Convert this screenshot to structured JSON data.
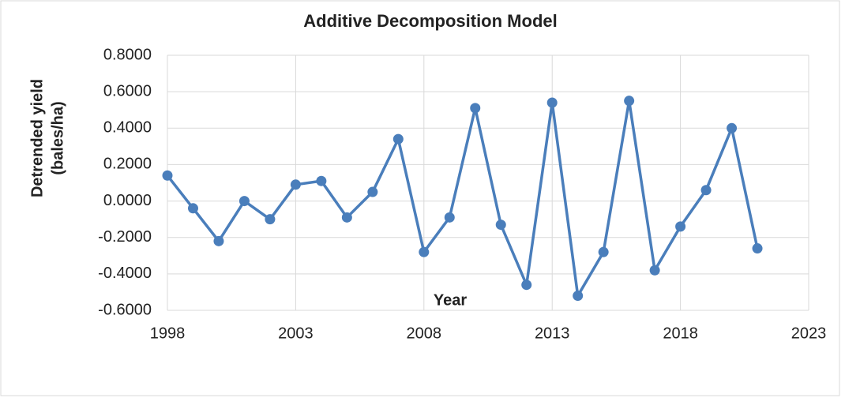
{
  "chart_data": {
    "type": "line",
    "title": "Additive Decomposition Model",
    "xlabel": "Year",
    "ylabel": [
      "Detrended yield",
      "(bales/ha)"
    ],
    "x": [
      1998,
      1999,
      2000,
      2001,
      2002,
      2003,
      2004,
      2005,
      2006,
      2007,
      2008,
      2009,
      2010,
      2011,
      2012,
      2013,
      2014,
      2015,
      2016,
      2017,
      2018,
      2019,
      2020,
      2021
    ],
    "series": [
      {
        "color": "#4a7ebb",
        "values": [
          0.14,
          -0.04,
          -0.22,
          0.0,
          -0.1,
          0.09,
          0.11,
          -0.09,
          0.05,
          0.34,
          -0.28,
          -0.09,
          0.51,
          -0.13,
          -0.46,
          0.54,
          -0.52,
          -0.28,
          0.55,
          -0.38,
          -0.14,
          0.06,
          0.4,
          -0.26
        ]
      }
    ],
    "xlim": [
      1998,
      2023
    ],
    "xticks": [
      1998,
      2003,
      2008,
      2013,
      2018,
      2023
    ],
    "ylim": [
      -0.6,
      0.8
    ],
    "yticks": [
      {
        "value": -0.6,
        "label": "-0.6000"
      },
      {
        "value": -0.4,
        "label": "-0.4000"
      },
      {
        "value": -0.2,
        "label": "-0.2000"
      },
      {
        "value": 0,
        "label": "0.0000"
      },
      {
        "value": 0.2,
        "label": "0.2000"
      },
      {
        "value": 0.4,
        "label": "0.4000"
      },
      {
        "value": 0.6,
        "label": "0.6000"
      },
      {
        "value": 0.8,
        "label": "0.8000"
      }
    ],
    "grid": true
  }
}
